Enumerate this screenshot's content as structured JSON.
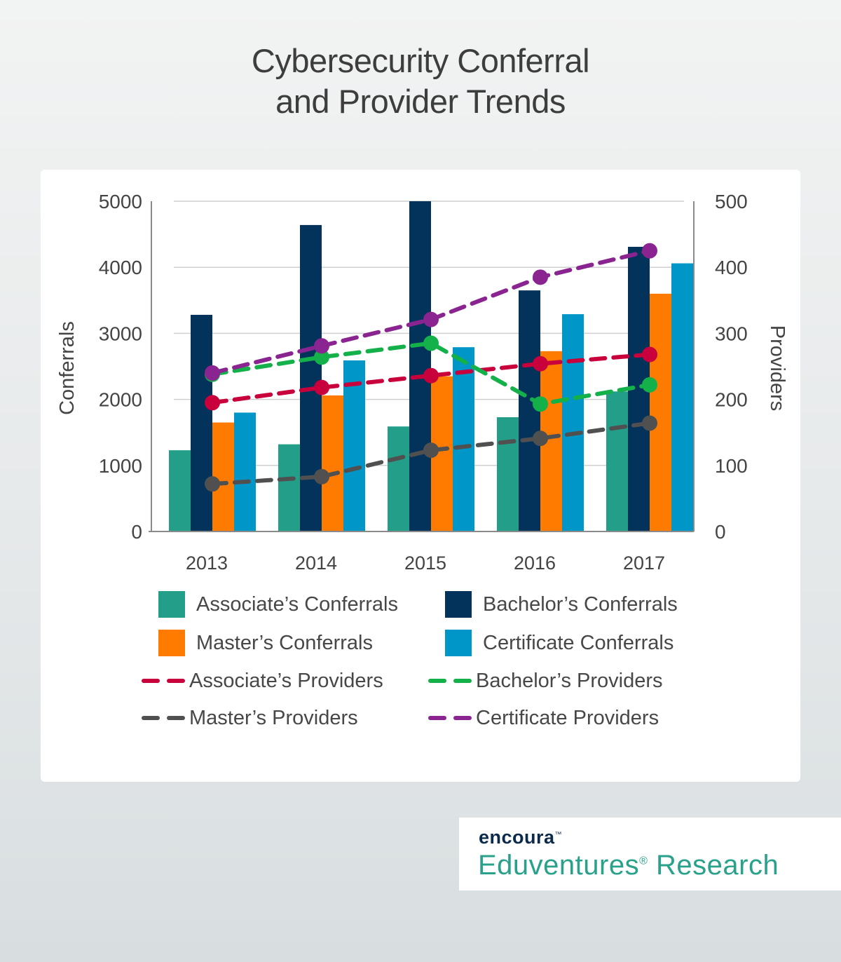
{
  "title": {
    "line1": "Cybersecurity Conferral",
    "line2": "and Provider Trends"
  },
  "chart_data": {
    "type": "bar",
    "categories": [
      "2013",
      "2014",
      "2015",
      "2016",
      "2017"
    ],
    "ylabel": "Conferrals",
    "y2label": "Providers",
    "ylim": [
      0,
      5000
    ],
    "y2lim": [
      0,
      500
    ],
    "yticks": [
      0,
      1000,
      2000,
      3000,
      4000,
      5000
    ],
    "y2ticks": [
      0,
      100,
      200,
      300,
      400,
      500
    ],
    "grid": true,
    "legend_position": "bottom",
    "bar_series": [
      {
        "name": "Associate’s Conferrals",
        "color": "#239e89",
        "values": [
          1230,
          1320,
          1590,
          1730,
          2120
        ]
      },
      {
        "name": "Bachelor’s Conferrals",
        "color": "#03325a",
        "values": [
          3280,
          4640,
          5000,
          3650,
          4310
        ]
      },
      {
        "name": "Master’s Conferrals",
        "color": "#ff7b00",
        "values": [
          1650,
          2060,
          2350,
          2730,
          3600
        ]
      },
      {
        "name": "Certificate Conferrals",
        "color": "#0096c7",
        "values": [
          1800,
          2590,
          2790,
          3290,
          4060
        ]
      }
    ],
    "line_series": [
      {
        "name": "Associate’s Providers",
        "color": "#c8003c",
        "values": [
          195,
          218,
          236,
          254,
          268
        ]
      },
      {
        "name": "Bachelor’s Providers",
        "color": "#14b04a",
        "values": [
          238,
          264,
          285,
          193,
          222
        ]
      },
      {
        "name": "Master’s Providers",
        "color": "#505050",
        "values": [
          72,
          83,
          123,
          141,
          164
        ]
      },
      {
        "name": "Certificate Providers",
        "color": "#8a2490",
        "values": [
          240,
          281,
          321,
          385,
          425
        ]
      }
    ]
  },
  "branding": {
    "company": "encoura",
    "division": "Eduventures",
    "division_suffix": "Research",
    "mark": "®",
    "tm": "™"
  }
}
